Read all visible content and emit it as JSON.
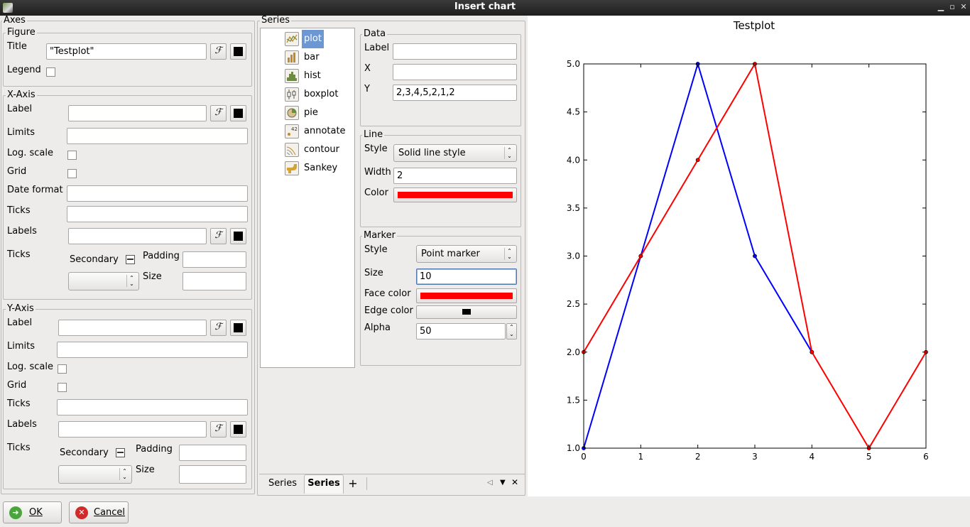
{
  "window": {
    "title": "Insert chart"
  },
  "axes_panel": {
    "title": "Axes",
    "figure": {
      "title": "Figure",
      "title_label": "Title",
      "title_value": "\"Testplot\"",
      "legend_label": "Legend",
      "legend_checked": false
    },
    "x_axis": {
      "title": "X-Axis",
      "label": "Label",
      "limits": "Limits",
      "log_scale": "Log. scale",
      "grid": "Grid",
      "date_format": "Date format",
      "ticks": "Ticks",
      "labels": "Labels",
      "ticks2": "Ticks",
      "secondary": "Secondary",
      "padding": "Padding",
      "size": "Size"
    },
    "y_axis": {
      "title": "Y-Axis",
      "label": "Label",
      "limits": "Limits",
      "log_scale": "Log. scale",
      "grid": "Grid",
      "ticks": "Ticks",
      "labels": "Labels",
      "ticks2": "Ticks",
      "secondary": "Secondary",
      "padding": "Padding",
      "size": "Size"
    },
    "formula_glyph": "ℱ"
  },
  "series_panel": {
    "title": "Series",
    "types": [
      {
        "label": "plot",
        "icon": "line-plot-icon",
        "selected": true
      },
      {
        "label": "bar",
        "icon": "bar-chart-icon"
      },
      {
        "label": "hist",
        "icon": "histogram-icon"
      },
      {
        "label": "boxplot",
        "icon": "boxplot-icon"
      },
      {
        "label": "pie",
        "icon": "pie-chart-icon"
      },
      {
        "label": "annotate",
        "icon": "annotate-icon"
      },
      {
        "label": "contour",
        "icon": "contour-icon"
      },
      {
        "label": "Sankey",
        "icon": "sankey-icon"
      }
    ],
    "data": {
      "title": "Data",
      "label_label": "Label",
      "label_value": "",
      "x_label": "X",
      "x_value": "",
      "y_label": "Y",
      "y_value": "2,3,4,5,2,1,2"
    },
    "line": {
      "title": "Line",
      "style_label": "Style",
      "style_value": "Solid line style",
      "width_label": "Width",
      "width_value": "2",
      "color_label": "Color",
      "color": "#ff0000"
    },
    "marker": {
      "title": "Marker",
      "style_label": "Style",
      "style_value": "Point marker",
      "size_label": "Size",
      "size_value": "10",
      "face_color_label": "Face color",
      "face_color": "#ff0000",
      "edge_color_label": "Edge color",
      "edge_color": "#000000",
      "alpha_label": "Alpha",
      "alpha_value": "50"
    },
    "tabs": [
      {
        "label": "Series",
        "active": false
      },
      {
        "label": "Series",
        "active": true
      }
    ],
    "add_tab": "+"
  },
  "buttons": {
    "ok": "OK",
    "cancel": "Cancel"
  },
  "chart_data": {
    "type": "line",
    "title": "Testplot",
    "xlim": [
      0,
      6
    ],
    "ylim": [
      1.0,
      5.0
    ],
    "xticks": [
      "0",
      "1",
      "2",
      "3",
      "4",
      "5",
      "6"
    ],
    "yticks": [
      "1.0",
      "1.5",
      "2.0",
      "2.5",
      "3.0",
      "3.5",
      "4.0",
      "4.5",
      "5.0"
    ],
    "grid": false,
    "series": [
      {
        "color": "#0000ff",
        "x": [
          0,
          1,
          2,
          3,
          4
        ],
        "y": [
          1,
          3,
          5,
          3,
          2
        ]
      },
      {
        "color": "#ff0000",
        "x": [
          0,
          1,
          2,
          3,
          4,
          5,
          6
        ],
        "y": [
          2,
          3,
          4,
          5,
          2,
          1,
          2
        ]
      }
    ]
  }
}
